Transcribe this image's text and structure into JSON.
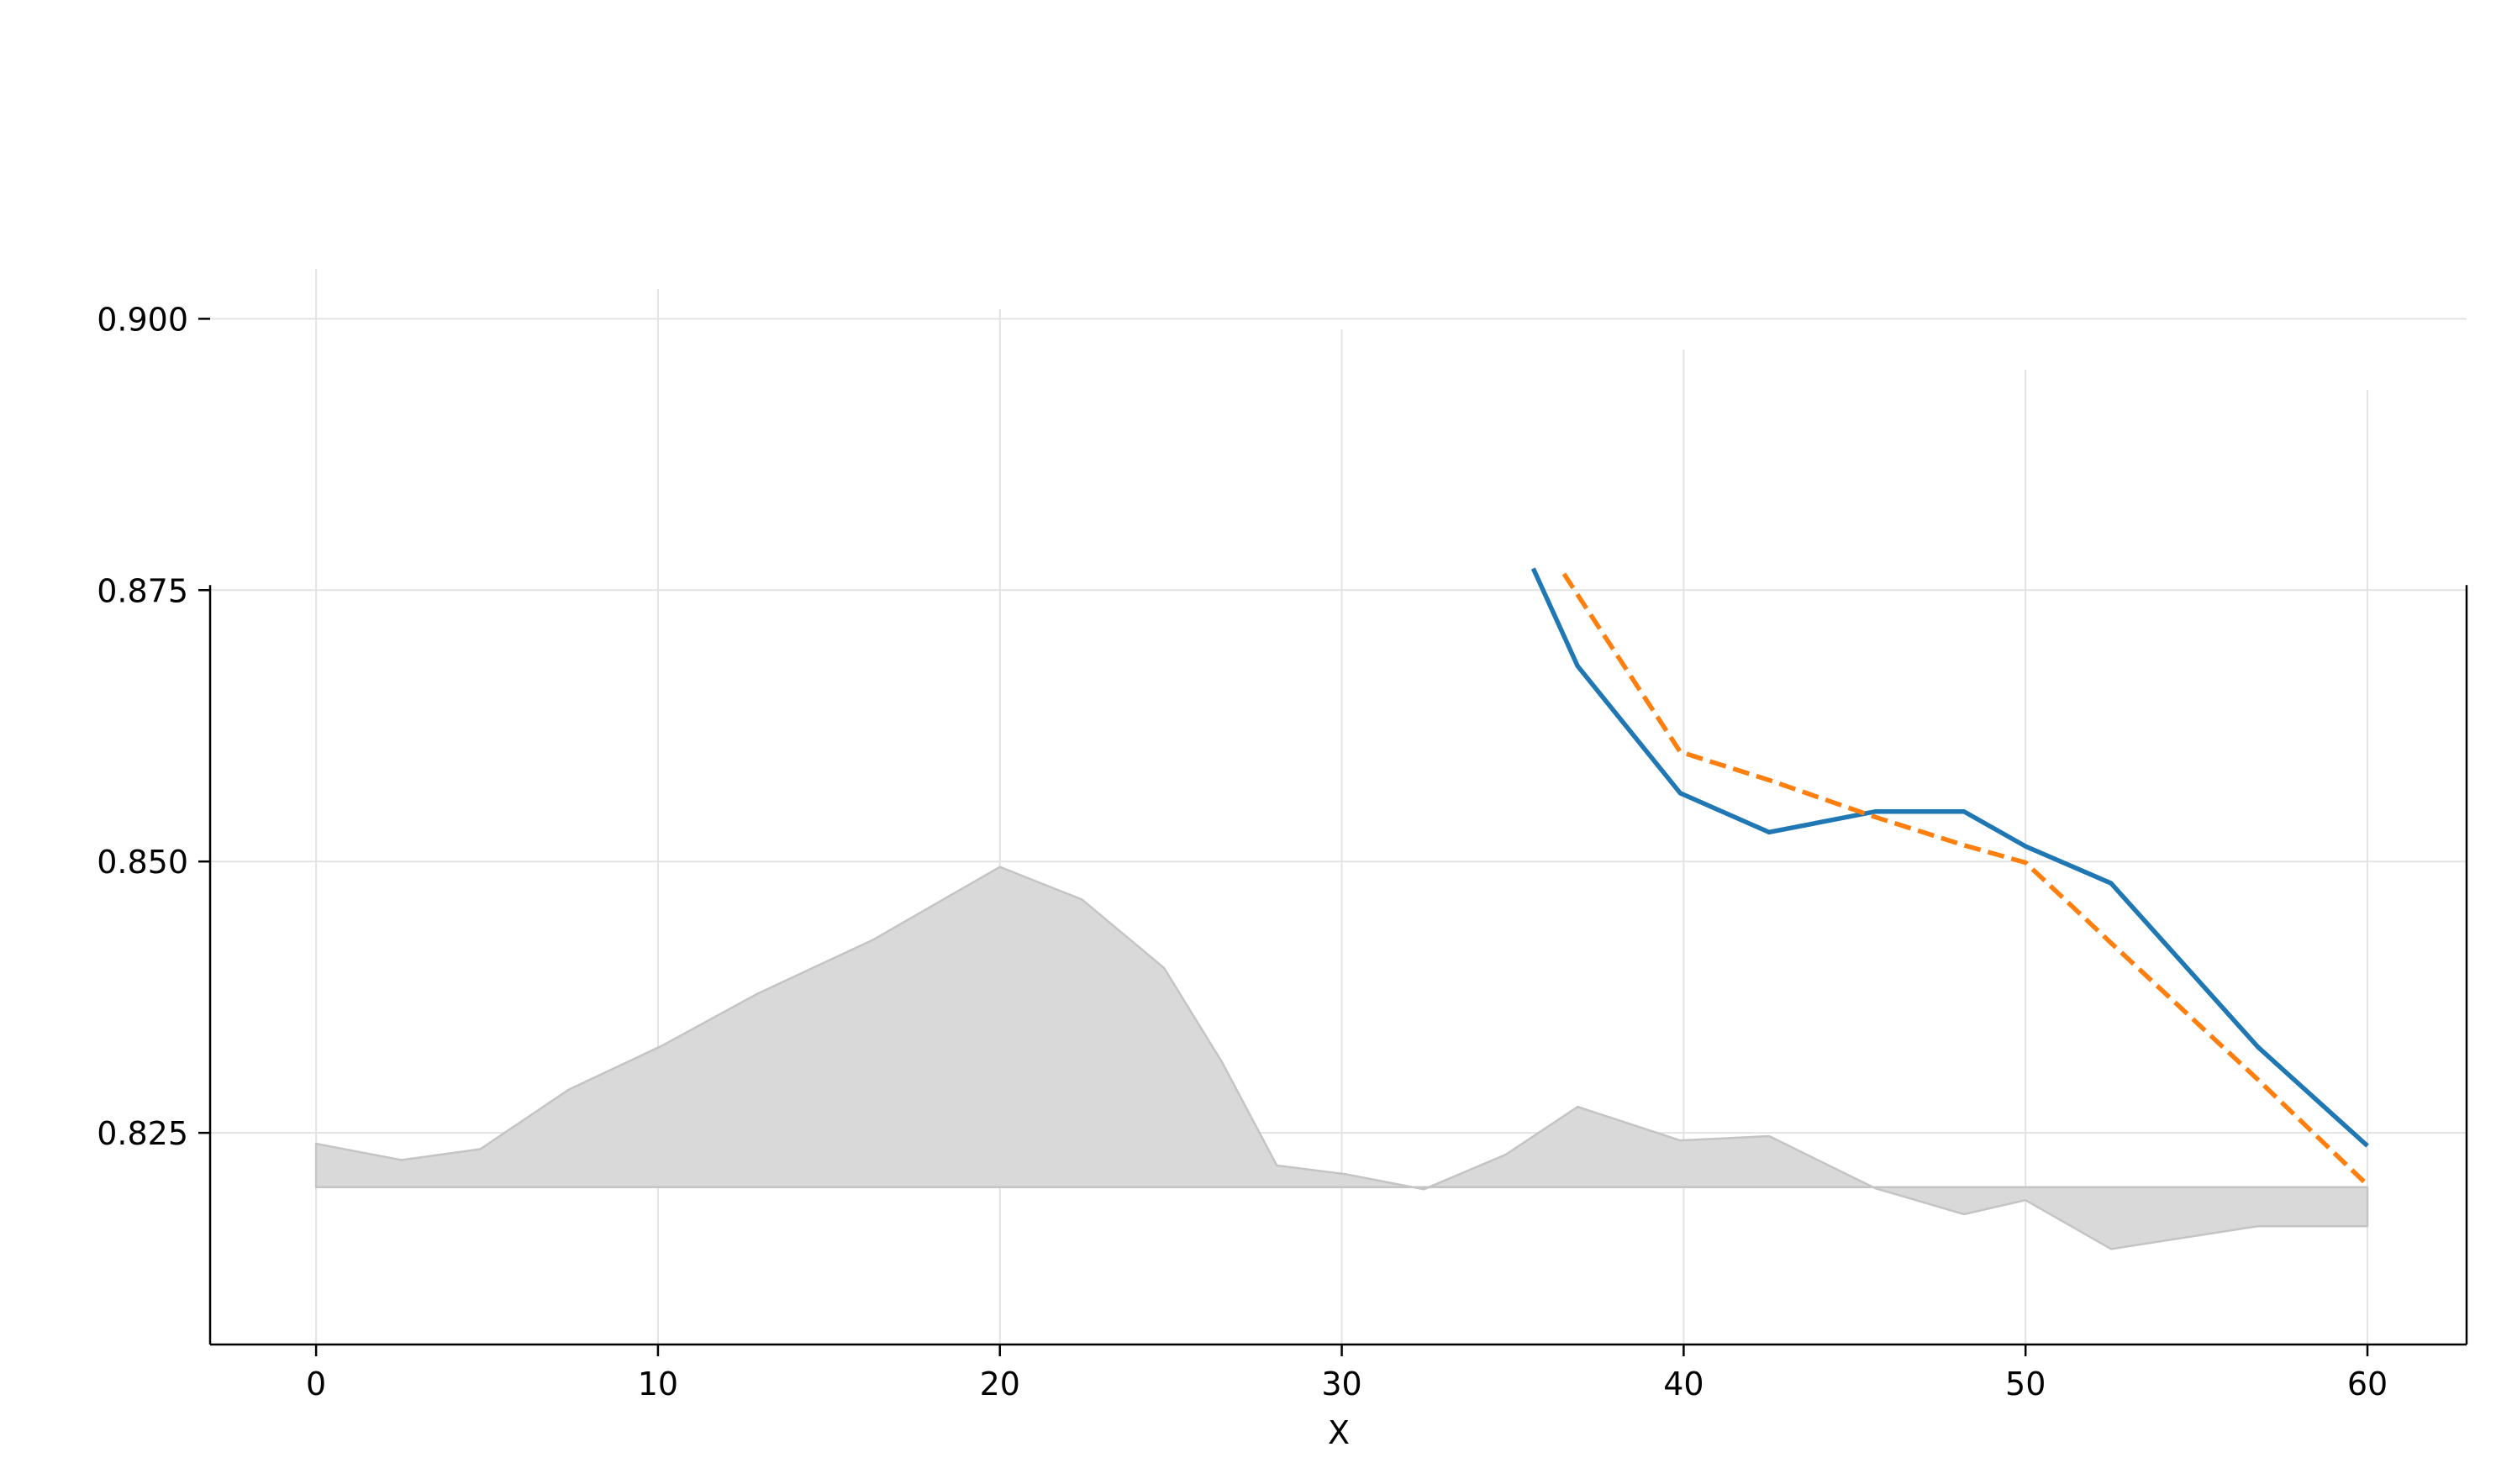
{
  "chart_data": {
    "type": "line",
    "xlabel": "X",
    "ylabel": "",
    "xlim": [
      -3.1,
      62.9
    ],
    "ylim": [
      0.8055,
      0.9255
    ],
    "x_ticks": [
      0,
      10,
      20,
      30,
      40,
      50,
      60
    ],
    "x_tick_labels": [
      "0",
      "10",
      "20",
      "30",
      "40",
      "50",
      "60"
    ],
    "y_ticks": [
      0.825,
      0.85,
      0.875,
      0.9
    ],
    "y_tick_labels": [
      "0.825",
      "0.850",
      "0.875",
      "0.900"
    ],
    "grid": true,
    "colors": {
      "series_solid": "#1f77b4",
      "series_dashed": "#ff7f0e",
      "band": "#d9d9d9",
      "band_edge": "#c4c4c4",
      "grid": "#e3e3e3",
      "axis": "#000000"
    },
    "band": {
      "baseline": 0.82,
      "x": [
        0,
        2.5,
        4.8,
        7.4,
        10.1,
        12.9,
        16.3,
        20.0,
        22.4,
        24.8,
        26.5,
        28.1,
        30.1,
        32.4,
        34.8,
        36.9,
        39.9,
        42.5,
        45.6,
        48.2,
        50.0,
        52.5,
        56.8,
        60.0
      ],
      "values": [
        0.824,
        0.8225,
        0.8235,
        0.829,
        0.833,
        0.8378,
        0.8428,
        0.8495,
        0.8465,
        0.8402,
        0.8315,
        0.822,
        0.8212,
        0.8198,
        0.823,
        0.8274,
        0.8243,
        0.8247,
        0.8199,
        0.8175,
        0.8188,
        0.8143,
        0.8164,
        0.8164
      ]
    },
    "series": [
      {
        "style": "solid",
        "x": [
          35.6,
          36.9,
          39.9,
          42.5,
          45.6,
          48.2,
          50.0,
          52.5,
          56.8,
          60.0
        ],
        "values": [
          0.877,
          0.868,
          0.8563,
          0.8527,
          0.8546,
          0.8546,
          0.8514,
          0.848,
          0.8329,
          0.8238
        ]
      },
      {
        "style": "dashed",
        "x": [
          36.5,
          39.9,
          42.5,
          45.6,
          48.2,
          50.0,
          52.5,
          56.8,
          60.0
        ],
        "values": [
          0.8765,
          0.8601,
          0.8575,
          0.8541,
          0.8515,
          0.8499,
          0.8425,
          0.8299,
          0.8202
        ]
      }
    ]
  }
}
